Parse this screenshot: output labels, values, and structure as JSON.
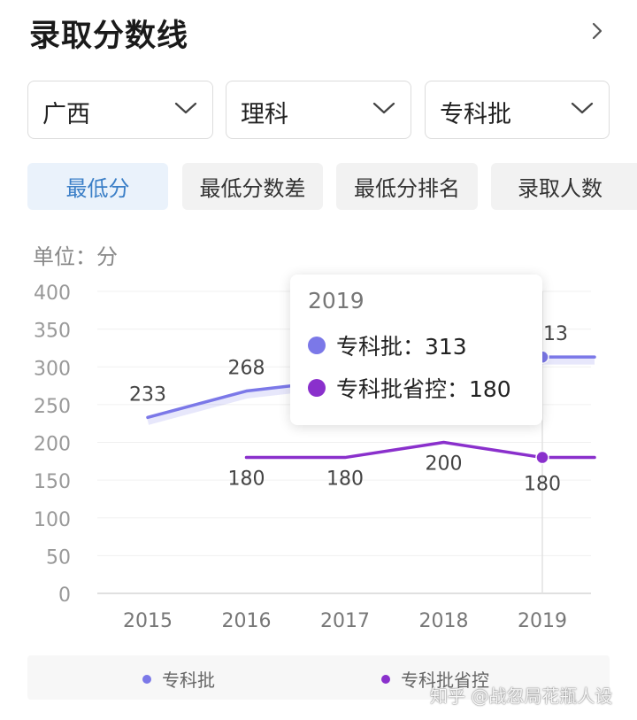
{
  "header": {
    "title": "录取分数线"
  },
  "filters": [
    {
      "label": "广西"
    },
    {
      "label": "理科"
    },
    {
      "label": "专科批"
    }
  ],
  "tabs": [
    {
      "label": "最低分",
      "active": true
    },
    {
      "label": "最低分数差",
      "active": false
    },
    {
      "label": "最低分排名",
      "active": false
    },
    {
      "label": "录取人数",
      "active": false
    }
  ],
  "unit_label": "单位：分",
  "chart_data": {
    "type": "line",
    "x": [
      "2015",
      "2016",
      "2017",
      "2018",
      "2019"
    ],
    "series": [
      {
        "name": "专科批",
        "values": [
          233,
          268,
          null,
          null,
          313
        ],
        "color": "#7b78e8",
        "labeled": [
          true,
          true,
          false,
          false,
          true
        ]
      },
      {
        "name": "专科批省控",
        "values": [
          null,
          180,
          180,
          200,
          180
        ],
        "color": "#8a30cc",
        "labeled": [
          false,
          true,
          true,
          true,
          true
        ]
      }
    ],
    "ylim": [
      0,
      400
    ],
    "yticks": [
      0,
      50,
      100,
      150,
      200,
      250,
      300,
      350,
      400
    ],
    "grid": true,
    "legend": "bottom"
  },
  "tooltip": {
    "title": "2019",
    "rows": [
      {
        "text": "专科批：313",
        "color": "#7b78e8"
      },
      {
        "text": "专科批省控：180",
        "color": "#8a30cc"
      }
    ]
  },
  "watermark": "知乎 @战忽局花瓶人设"
}
